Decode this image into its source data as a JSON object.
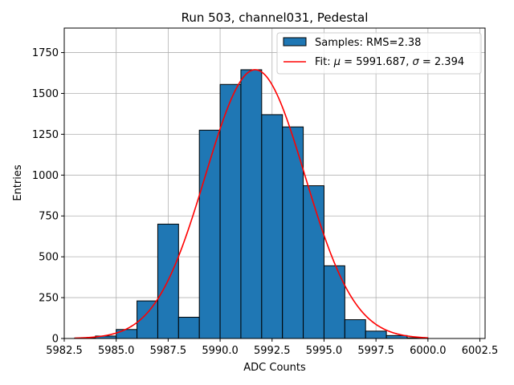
{
  "chart_data": {
    "type": "bar",
    "title": "Run 503, channel031, Pedestal",
    "xlabel": "ADC Counts",
    "ylabel": "Entries",
    "xlim": [
      5982.5,
      6002.75
    ],
    "ylim": [
      0,
      1900
    ],
    "grid": true,
    "legend_position": "top-right",
    "x_ticks": [
      5982.5,
      5985.0,
      5987.5,
      5990.0,
      5992.5,
      5995.0,
      5997.5,
      6000.0,
      6002.5
    ],
    "x_tick_labels": [
      "5982.5",
      "5985.0",
      "5987.5",
      "5990.0",
      "5992.5",
      "5995.0",
      "5997.5",
      "6000.0",
      "6002.5"
    ],
    "y_ticks": [
      0,
      250,
      500,
      750,
      1000,
      1250,
      1500,
      1750
    ],
    "y_tick_labels": [
      "0",
      "250",
      "500",
      "750",
      "1000",
      "1250",
      "1500",
      "1750"
    ],
    "histogram": {
      "name": "Samples: RMS=2.38",
      "color": "#1f77b4",
      "edge_color": "#000000",
      "bin_edges": [
        5983,
        5984,
        5985,
        5986,
        5987,
        5988,
        5989,
        5990,
        5991,
        5992,
        5993,
        5994,
        5995,
        5996,
        5997,
        5998,
        5999,
        6000,
        6001,
        6002
      ],
      "counts": [
        3,
        15,
        55,
        230,
        700,
        130,
        1275,
        1555,
        1645,
        1370,
        1295,
        935,
        445,
        115,
        45,
        18,
        4,
        0,
        0
      ]
    },
    "fit": {
      "name_prefix": "Fit: ",
      "name_mu": "μ",
      "name_mu_value": " = 5991.687, ",
      "name_sigma": "σ",
      "name_sigma_value": " = 2.394",
      "color": "#ff0000",
      "mu": 5991.687,
      "sigma": 2.394,
      "amplitude": 1645,
      "x_range": [
        5983,
        6000
      ]
    }
  }
}
